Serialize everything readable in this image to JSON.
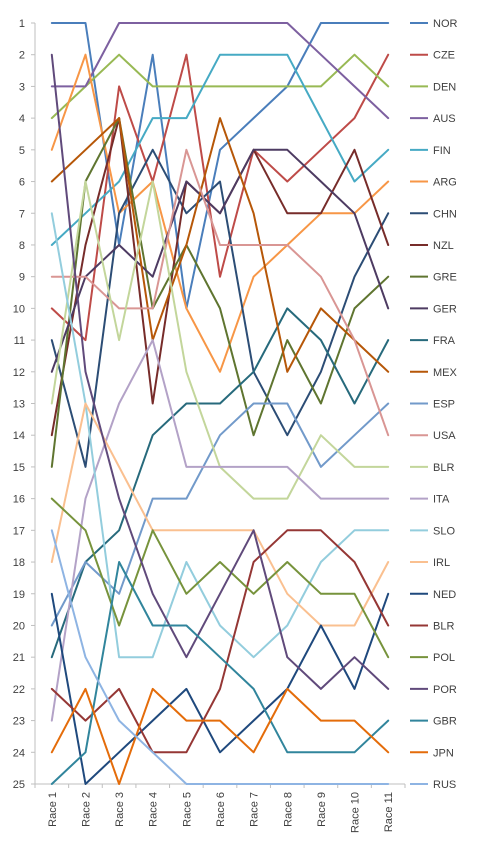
{
  "chart_data": {
    "type": "line",
    "title": "",
    "xlabel": "",
    "ylabel": "",
    "categories": [
      "Race 1",
      "Race 2",
      "Race 3",
      "Race 4",
      "Race 5",
      "Race 6",
      "Race 7",
      "Race 8",
      "Race 9",
      "Race 10",
      "Race 11"
    ],
    "y_ticks": [
      1,
      2,
      3,
      4,
      5,
      6,
      7,
      8,
      9,
      10,
      11,
      12,
      13,
      14,
      15,
      16,
      17,
      18,
      19,
      20,
      21,
      22,
      23,
      24,
      25
    ],
    "ylim": [
      1,
      25
    ],
    "y_reversed": true,
    "grid": false,
    "legend_position": "right",
    "series": [
      {
        "name": "NOR",
        "color": "#4a7ebb",
        "values": [
          1,
          1,
          8,
          2,
          10,
          5,
          4,
          3,
          1,
          1,
          1
        ]
      },
      {
        "name": "CZE",
        "color": "#be4b48",
        "values": [
          10,
          11,
          3,
          6,
          2,
          9,
          5,
          6,
          5,
          4,
          2
        ]
      },
      {
        "name": "DEN",
        "color": "#98b954",
        "values": [
          4,
          3,
          2,
          3,
          3,
          3,
          3,
          3,
          3,
          2,
          3
        ]
      },
      {
        "name": "AUS",
        "color": "#7d60a0",
        "values": [
          3,
          3,
          1,
          1,
          1,
          1,
          1,
          1,
          2,
          3,
          4
        ]
      },
      {
        "name": "FIN",
        "color": "#46aac4",
        "values": [
          8,
          7,
          6,
          4,
          4,
          2,
          2,
          2,
          4,
          6,
          5
        ]
      },
      {
        "name": "ARG",
        "color": "#f79646",
        "values": [
          5,
          2,
          7,
          6,
          10,
          12,
          9,
          8,
          7,
          7,
          6
        ]
      },
      {
        "name": "CHN",
        "color": "#2c4d75",
        "values": [
          11,
          15,
          7,
          5,
          7,
          6,
          12,
          14,
          12,
          9,
          7
        ]
      },
      {
        "name": "NZL",
        "color": "#772c2a",
        "values": [
          14,
          8,
          4,
          13,
          6,
          7,
          5,
          7,
          7,
          5,
          8
        ]
      },
      {
        "name": "GRE",
        "color": "#5f7530",
        "values": [
          15,
          6,
          4,
          10,
          8,
          10,
          14,
          11,
          13,
          10,
          9
        ]
      },
      {
        "name": "GER",
        "color": "#4d3b62",
        "values": [
          12,
          9,
          8,
          9,
          6,
          7,
          5,
          5,
          6,
          7,
          10
        ]
      },
      {
        "name": "FRA",
        "color": "#276a7c",
        "values": [
          21,
          18,
          17,
          14,
          13,
          13,
          12,
          10,
          11,
          13,
          11
        ]
      },
      {
        "name": "MEX",
        "color": "#b65708",
        "values": [
          6,
          5,
          4,
          11,
          8,
          4,
          7,
          12,
          10,
          11,
          12
        ]
      },
      {
        "name": "ESP",
        "color": "#729aca",
        "values": [
          20,
          18,
          19,
          16,
          16,
          14,
          13,
          13,
          15,
          14,
          13
        ]
      },
      {
        "name": "USA",
        "color": "#d99694",
        "values": [
          9,
          9,
          10,
          10,
          5,
          8,
          8,
          8,
          9,
          11,
          14
        ]
      },
      {
        "name": "BLR",
        "color": "#c3d69b",
        "values": [
          13,
          6,
          11,
          6,
          12,
          15,
          16,
          16,
          14,
          15,
          15
        ]
      },
      {
        "name": "ITA",
        "color": "#b3a2c7",
        "values": [
          23,
          16,
          13,
          11,
          15,
          15,
          15,
          15,
          16,
          16,
          16
        ]
      },
      {
        "name": "SLO",
        "color": "#93cddd",
        "values": [
          7,
          13,
          21,
          21,
          18,
          20,
          21,
          20,
          18,
          17,
          17
        ]
      },
      {
        "name": "IRL",
        "color": "#fac090",
        "values": [
          18,
          13,
          15,
          17,
          17,
          17,
          17,
          19,
          20,
          20,
          18
        ]
      },
      {
        "name": "NED",
        "color": "#1f497d",
        "values": [
          19,
          25,
          24,
          23,
          22,
          24,
          23,
          22,
          20,
          22,
          19
        ]
      },
      {
        "name": "BLR",
        "color": "#953735",
        "values": [
          22,
          23,
          22,
          24,
          24,
          22,
          18,
          17,
          17,
          18,
          20
        ]
      },
      {
        "name": "POL",
        "color": "#77933c",
        "values": [
          16,
          17,
          20,
          17,
          19,
          18,
          19,
          18,
          19,
          19,
          21
        ]
      },
      {
        "name": "POR",
        "color": "#604a7b",
        "values": [
          2,
          12,
          16,
          19,
          21,
          19,
          17,
          21,
          22,
          21,
          22
        ]
      },
      {
        "name": "GBR",
        "color": "#31859c",
        "values": [
          25,
          24,
          18,
          20,
          20,
          21,
          22,
          24,
          24,
          24,
          23
        ]
      },
      {
        "name": "JPN",
        "color": "#e46c0a",
        "values": [
          24,
          22,
          25,
          22,
          23,
          23,
          24,
          22,
          23,
          23,
          24
        ]
      },
      {
        "name": "RUS",
        "color": "#8eb4e3",
        "values": [
          17,
          21,
          23,
          24,
          25,
          25,
          25,
          25,
          25,
          25,
          25
        ]
      }
    ]
  }
}
